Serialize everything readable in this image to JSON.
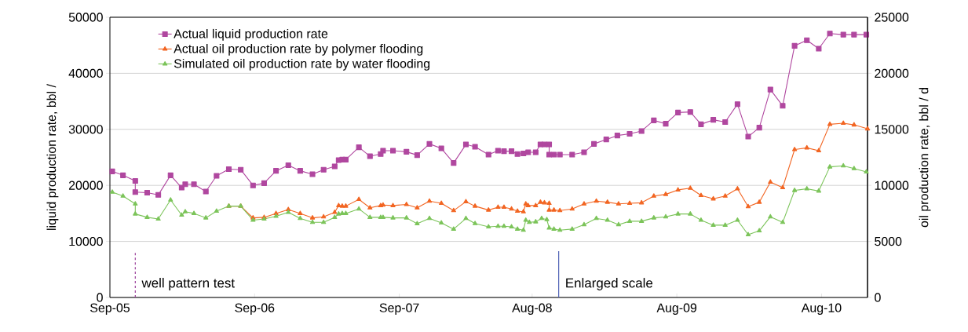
{
  "chart_data": {
    "type": "line",
    "ylabel": "liquid production rate, bbl /",
    "y2label": "oil production rate, bbl / d",
    "xlim": [
      "2005-09-01",
      "2010-11-25"
    ],
    "xticks": [
      {
        "value": "2005-09-01",
        "label": "Sep-05"
      },
      {
        "value": "2006-09-01",
        "label": "Sep-06"
      },
      {
        "value": "2007-09-01",
        "label": "Sep-07"
      },
      {
        "value": "2008-08-01",
        "label": "Aug-08"
      },
      {
        "value": "2009-08-01",
        "label": "Aug-09"
      },
      {
        "value": "2010-08-01",
        "label": "Aug-10"
      }
    ],
    "ylim": [
      0,
      50000
    ],
    "yticks": [
      0,
      10000,
      20000,
      30000,
      40000,
      50000
    ],
    "y2lim": [
      0,
      25000
    ],
    "y2ticks": [
      0,
      5000,
      10000,
      15000,
      20000,
      25000
    ],
    "grid": "y",
    "legend": "top left",
    "line_style": "solid",
    "series": [
      {
        "name": "Actual liquid production rate",
        "color": "#b0479f",
        "marker": "square",
        "axis": "y",
        "x": [
          "2005-09-07",
          "2005-10-04",
          "2005-11-04",
          "2005-11-04",
          "2005-12-04",
          "2006-01-01",
          "2006-02-01",
          "2006-03-01",
          "2006-03-10",
          "2006-04-01",
          "2006-05-01",
          "2006-05-28",
          "2006-06-28",
          "2006-07-28",
          "2006-08-28",
          "2006-09-25",
          "2006-10-25",
          "2006-11-25",
          "2006-12-25",
          "2007-01-25",
          "2007-02-22",
          "2007-03-22",
          "2007-04-01",
          "2007-04-10",
          "2007-04-19",
          "2007-05-22",
          "2007-06-19",
          "2007-07-16",
          "2007-07-22",
          "2007-08-16",
          "2007-09-19",
          "2007-10-16",
          "2007-11-16",
          "2007-12-16",
          "2008-01-16",
          "2008-02-16",
          "2008-03-10",
          "2008-04-13",
          "2008-05-07",
          "2008-05-22",
          "2008-06-10",
          "2008-06-25",
          "2008-07-10",
          "2008-07-22",
          "2008-08-10",
          "2008-08-22",
          "2008-09-01",
          "2008-09-13",
          "2008-09-13",
          "2008-09-25",
          "2008-10-10",
          "2008-11-10",
          "2008-12-10",
          "2009-01-04",
          "2009-02-04",
          "2009-03-04",
          "2009-04-04",
          "2009-05-04",
          "2009-06-04",
          "2009-07-04",
          "2009-08-04",
          "2009-09-04",
          "2009-10-01",
          "2009-11-01",
          "2009-12-01",
          "2010-01-01",
          "2010-01-28",
          "2010-02-25",
          "2010-03-25",
          "2010-04-25",
          "2010-05-25",
          "2010-06-25",
          "2010-07-25",
          "2010-08-22",
          "2010-09-25",
          "2010-10-22",
          "2010-11-22"
        ],
        "values": [
          22500,
          21800,
          20800,
          18800,
          18700,
          18300,
          21800,
          19600,
          20200,
          20200,
          18900,
          21700,
          22900,
          22800,
          20000,
          20400,
          22600,
          23600,
          22600,
          22000,
          22800,
          23400,
          24500,
          24600,
          24600,
          26800,
          25200,
          25600,
          26200,
          26200,
          26000,
          25400,
          27400,
          26600,
          24000,
          27300,
          26900,
          25500,
          26200,
          26100,
          26100,
          25600,
          25700,
          25900,
          25900,
          27300,
          27300,
          27300,
          25500,
          25500,
          25500,
          25500,
          25900,
          27400,
          28200,
          28900,
          29200,
          29700,
          31600,
          31000,
          33000,
          33100,
          30900,
          31700,
          31300,
          34500,
          28700,
          30300,
          37100,
          34200,
          44900,
          45900,
          44400,
          47100,
          46900,
          46900,
          46900
        ]
      },
      {
        "name": "Actual oil production rate by polymer flooding",
        "color": "#f26522",
        "marker": "triangle",
        "axis": "y2",
        "x": [
          "2006-06-28",
          "2006-07-28",
          "2006-08-28",
          "2006-09-25",
          "2006-10-25",
          "2006-11-25",
          "2006-12-25",
          "2007-01-25",
          "2007-02-22",
          "2007-03-22",
          "2007-04-01",
          "2007-04-10",
          "2007-04-19",
          "2007-05-22",
          "2007-06-19",
          "2007-07-16",
          "2007-07-22",
          "2007-08-16",
          "2007-09-19",
          "2007-10-16",
          "2007-11-16",
          "2007-12-16",
          "2008-01-16",
          "2008-02-16",
          "2008-03-10",
          "2008-04-13",
          "2008-05-07",
          "2008-05-22",
          "2008-06-10",
          "2008-06-25",
          "2008-07-10",
          "2008-07-16",
          "2008-07-22",
          "2008-08-10",
          "2008-08-22",
          "2008-09-01",
          "2008-09-13",
          "2008-09-13",
          "2008-09-25",
          "2008-10-10",
          "2008-11-10",
          "2008-12-10",
          "2009-01-10",
          "2009-02-07",
          "2009-03-07",
          "2009-04-04",
          "2009-05-04",
          "2009-06-04",
          "2009-07-04",
          "2009-08-04",
          "2009-09-04",
          "2009-10-01",
          "2009-11-01",
          "2009-12-01",
          "2010-01-01",
          "2010-01-28",
          "2010-02-25",
          "2010-03-25",
          "2010-04-25",
          "2010-05-25",
          "2010-06-25",
          "2010-07-25",
          "2010-08-22",
          "2010-09-25",
          "2010-10-22",
          "2010-11-25"
        ],
        "values": [
          8150,
          8150,
          7100,
          7150,
          7500,
          7850,
          7500,
          7100,
          7200,
          7600,
          8200,
          8150,
          8150,
          8750,
          8000,
          8200,
          8250,
          8200,
          8300,
          8000,
          8600,
          8400,
          7750,
          8550,
          8150,
          7800,
          8050,
          8050,
          7900,
          7700,
          7650,
          8350,
          8200,
          8200,
          8500,
          8450,
          8400,
          7800,
          7800,
          7750,
          7900,
          8350,
          8600,
          8500,
          8350,
          8400,
          8450,
          9050,
          9200,
          9600,
          9750,
          9100,
          8800,
          9050,
          9700,
          8100,
          8500,
          10300,
          9800,
          13200,
          13350,
          13100,
          15450,
          15550,
          15400,
          15050
        ]
      },
      {
        "name": "Simulated oil production rate by water flooding",
        "color": "#7cc45a",
        "marker": "triangle",
        "axis": "y2",
        "x": [
          "2005-09-07",
          "2005-10-04",
          "2005-11-04",
          "2005-11-04",
          "2005-12-04",
          "2006-01-01",
          "2006-02-01",
          "2006-03-01",
          "2006-03-10",
          "2006-04-01",
          "2006-05-01",
          "2006-05-28",
          "2006-06-28",
          "2006-07-28",
          "2006-08-28",
          "2006-09-25",
          "2006-10-25",
          "2006-11-25",
          "2006-12-25",
          "2007-01-25",
          "2007-02-22",
          "2007-03-22",
          "2007-04-01",
          "2007-04-10",
          "2007-04-19",
          "2007-05-22",
          "2007-06-19",
          "2007-07-16",
          "2007-07-22",
          "2007-08-16",
          "2007-09-19",
          "2007-10-16",
          "2007-11-16",
          "2007-12-16",
          "2008-01-16",
          "2008-02-16",
          "2008-03-10",
          "2008-04-13",
          "2008-05-07",
          "2008-05-22",
          "2008-06-10",
          "2008-06-25",
          "2008-07-10",
          "2008-07-16",
          "2008-07-25",
          "2008-08-10",
          "2008-08-25",
          "2008-09-07",
          "2008-09-13",
          "2008-09-25",
          "2008-10-10",
          "2008-11-10",
          "2008-12-10",
          "2009-01-10",
          "2009-02-07",
          "2009-03-07",
          "2009-04-04",
          "2009-05-04",
          "2009-06-04",
          "2009-07-04",
          "2009-08-04",
          "2009-09-04",
          "2009-10-01",
          "2009-11-01",
          "2009-12-01",
          "2010-01-01",
          "2010-01-28",
          "2010-02-25",
          "2010-03-25",
          "2010-04-25",
          "2010-05-25",
          "2010-06-25",
          "2010-07-25",
          "2010-08-22",
          "2010-09-25",
          "2010-10-22",
          "2010-11-22"
        ],
        "values": [
          9400,
          9050,
          8350,
          7450,
          7150,
          7000,
          8700,
          7350,
          7650,
          7500,
          7100,
          7700,
          8150,
          8150,
          6900,
          7000,
          7250,
          7600,
          7050,
          6700,
          6700,
          7150,
          7450,
          7500,
          7500,
          7900,
          7150,
          7150,
          7150,
          7100,
          7100,
          6580,
          7050,
          6650,
          6100,
          7050,
          6600,
          6300,
          6350,
          6350,
          6300,
          6100,
          6000,
          6900,
          6700,
          6750,
          7050,
          6950,
          6200,
          6100,
          6000,
          6100,
          6500,
          7050,
          6900,
          6500,
          6800,
          6800,
          7100,
          7200,
          7450,
          7450,
          6900,
          6450,
          6450,
          6900,
          5600,
          5950,
          7200,
          6700,
          9550,
          9700,
          9500,
          11650,
          11750,
          11500,
          11200
        ]
      }
    ],
    "ref_lines": [
      {
        "axis": "x",
        "value": "2005-11-04",
        "label": "well pattern test",
        "color": "#9b3f9b",
        "line_style": "dashed"
      },
      {
        "axis": "x",
        "value": "2008-10-07",
        "label": "Enlarged scale",
        "color": "#4f62b5",
        "line_style": "solid"
      }
    ]
  }
}
